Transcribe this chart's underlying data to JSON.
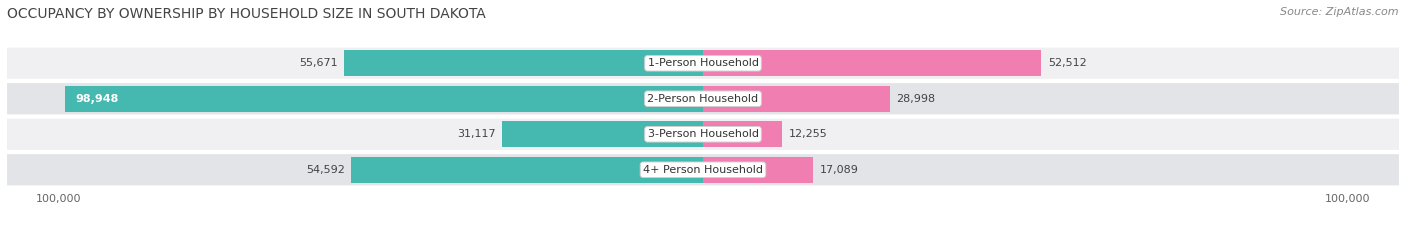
{
  "title": "OCCUPANCY BY OWNERSHIP BY HOUSEHOLD SIZE IN SOUTH DAKOTA",
  "source": "Source: ZipAtlas.com",
  "categories": [
    "1-Person Household",
    "2-Person Household",
    "3-Person Household",
    "4+ Person Household"
  ],
  "owner_values": [
    55671,
    98948,
    31117,
    54592
  ],
  "renter_values": [
    52512,
    28998,
    12255,
    17089
  ],
  "max_value": 100000,
  "owner_color": "#45b8b0",
  "renter_color": "#f07eb0",
  "row_bg_odd": "#f0f0f2",
  "row_bg_even": "#e2e4e8",
  "title_fontsize": 10,
  "source_fontsize": 8,
  "value_fontsize": 8,
  "cat_fontsize": 8,
  "tick_fontsize": 8,
  "legend_fontsize": 8.5,
  "figure_bg_color": "#ffffff"
}
